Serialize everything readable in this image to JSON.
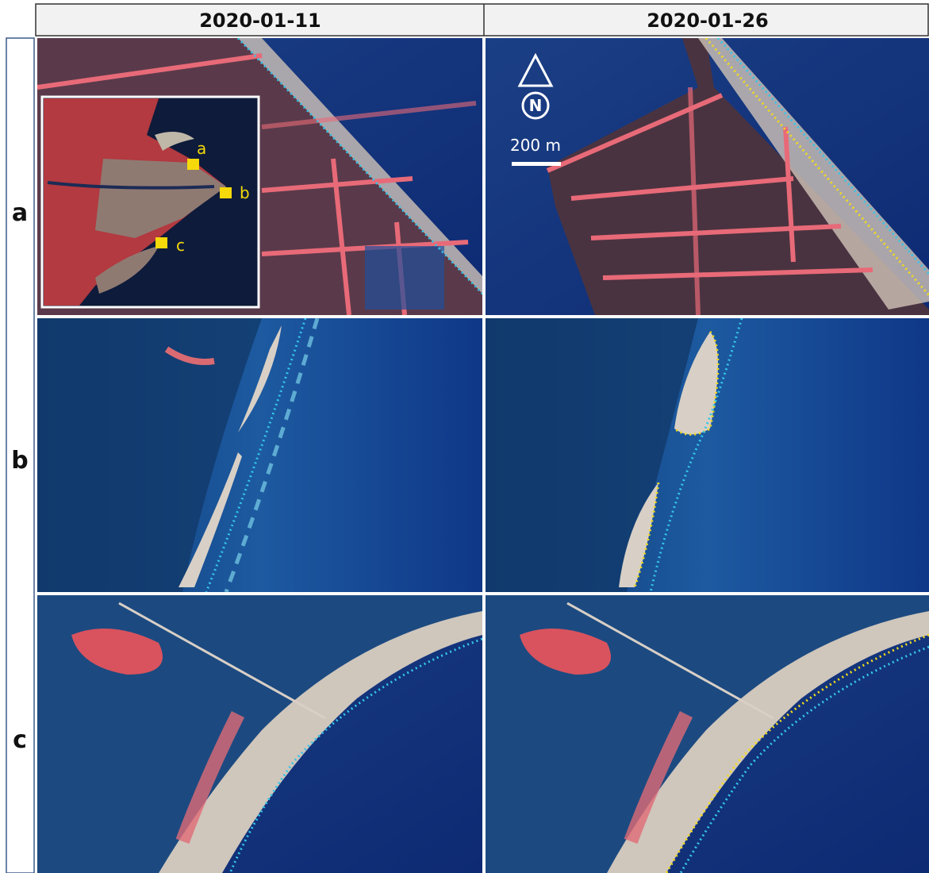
{
  "columns": [
    "2020-01-11",
    "2020-01-26"
  ],
  "rows": [
    "a",
    "b",
    "c"
  ],
  "inset": {
    "labels": [
      "a",
      "b",
      "c"
    ]
  },
  "north_arrow": "N",
  "scale_bar": "200 m"
}
